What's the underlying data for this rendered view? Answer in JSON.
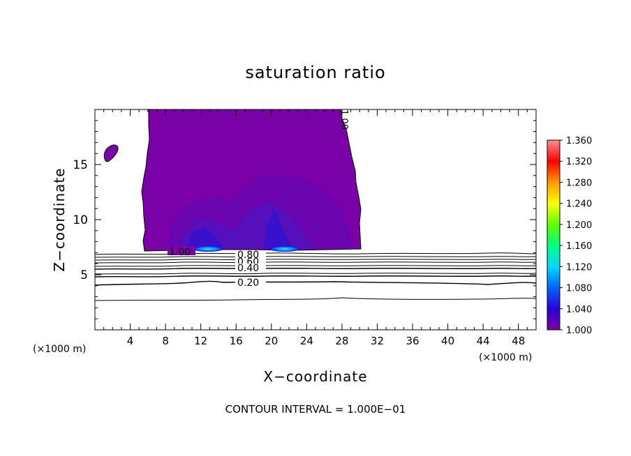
{
  "chart_data": {
    "type": "contour",
    "title": "saturation ratio",
    "xlabel": "X−coordinate",
    "ylabel": "Z−coordinate",
    "x_unit": "(×1000 m)",
    "y_unit": "(×1000 m)",
    "xlim": [
      0,
      50
    ],
    "ylim": [
      0,
      20
    ],
    "x_ticks": [
      4,
      8,
      12,
      16,
      20,
      24,
      28,
      32,
      36,
      40,
      44,
      48
    ],
    "y_ticks": [
      5,
      10,
      15
    ],
    "footer": "CONTOUR INTERVAL = 1.000E−01",
    "contour_interval": 0.1,
    "contour_levels": [
      {
        "label": "1.00",
        "z": 7.0
      },
      {
        "label": "0.80",
        "z": 6.6
      },
      {
        "label": "0.60",
        "z": 6.3
      },
      {
        "label": "0.40",
        "z": 5.6
      },
      {
        "label": "0.20",
        "z": 4.2
      },
      {
        "label": "",
        "z": 2.7
      }
    ],
    "supersaturated_region": {
      "x_range": [
        6,
        30
      ],
      "z_range": [
        7.2,
        20
      ]
    },
    "maxima": [
      {
        "x": 13,
        "z": 7.4,
        "value": 1.1
      },
      {
        "x": 21.5,
        "z": 7.4,
        "value": 1.1
      }
    ],
    "colorbar": {
      "min": 1.0,
      "max": 1.36,
      "ticks": [
        "1.360",
        "1.320",
        "1.280",
        "1.240",
        "1.200",
        "1.160",
        "1.120",
        "1.080",
        "1.040",
        "1.000"
      ],
      "colors": [
        "#7a00a8",
        "#2a00d8",
        "#0066ff",
        "#00d8ff",
        "#00ff80",
        "#60ff00",
        "#ffff00",
        "#ff9900",
        "#ff0000",
        "#ff9090"
      ]
    }
  }
}
